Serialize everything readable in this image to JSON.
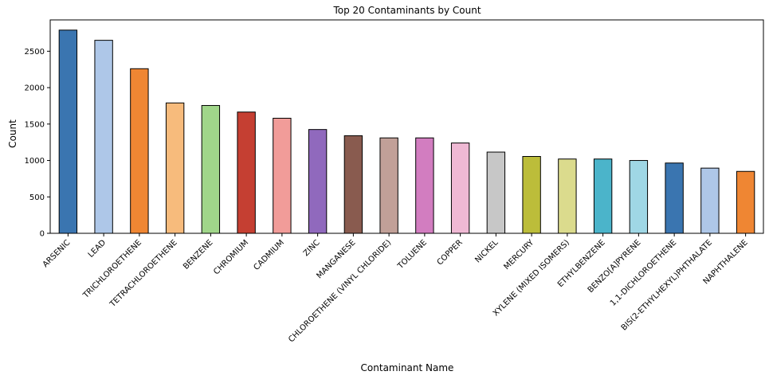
{
  "chart_data": {
    "type": "bar",
    "title": "Top 20 Contaminants by Count",
    "xlabel": "Contaminant Name",
    "ylabel": "Count",
    "ylim": [
      0,
      2930
    ],
    "yticks": [
      0,
      500,
      1000,
      1500,
      2000,
      2500
    ],
    "grid": false,
    "legend": "none",
    "categories": [
      "ARSENIC",
      "LEAD",
      "TRICHLOROETHENE",
      "TETRACHLOROETHENE",
      "BENZENE",
      "CHROMIUM",
      "CADMIUM",
      "ZINC",
      "MANGANESE",
      "CHLOROETHENE (VINYL CHLORIDE)",
      "TOLUENE",
      "COPPER",
      "NICKEL",
      "MERCURY",
      "XYLENE (MIXED ISOMERS)",
      "ETHYLBENZENE",
      "BENZO[A]PYRENE",
      "1,1-DICHLOROETHENE",
      "BIS(2-ETHYLHEXYL)PHTHALATE",
      "NAPHTHALENE"
    ],
    "values": [
      2790,
      2650,
      2260,
      1790,
      1755,
      1665,
      1580,
      1425,
      1340,
      1310,
      1310,
      1240,
      1115,
      1055,
      1020,
      1020,
      1000,
      965,
      895,
      850
    ],
    "colors": [
      "#3a75b0",
      "#aec7e8",
      "#ef8633",
      "#f7bb7c",
      "#a0d68a",
      "#c53f32",
      "#f19c99",
      "#9069bd",
      "#895b4f",
      "#c1a098",
      "#d27dc0",
      "#efb9d4",
      "#c7c7c7",
      "#bcbd3a",
      "#dbdb8d",
      "#4bb4ca",
      "#9fd7e5",
      "#3a75b0",
      "#aec7e8",
      "#ef8633"
    ]
  }
}
